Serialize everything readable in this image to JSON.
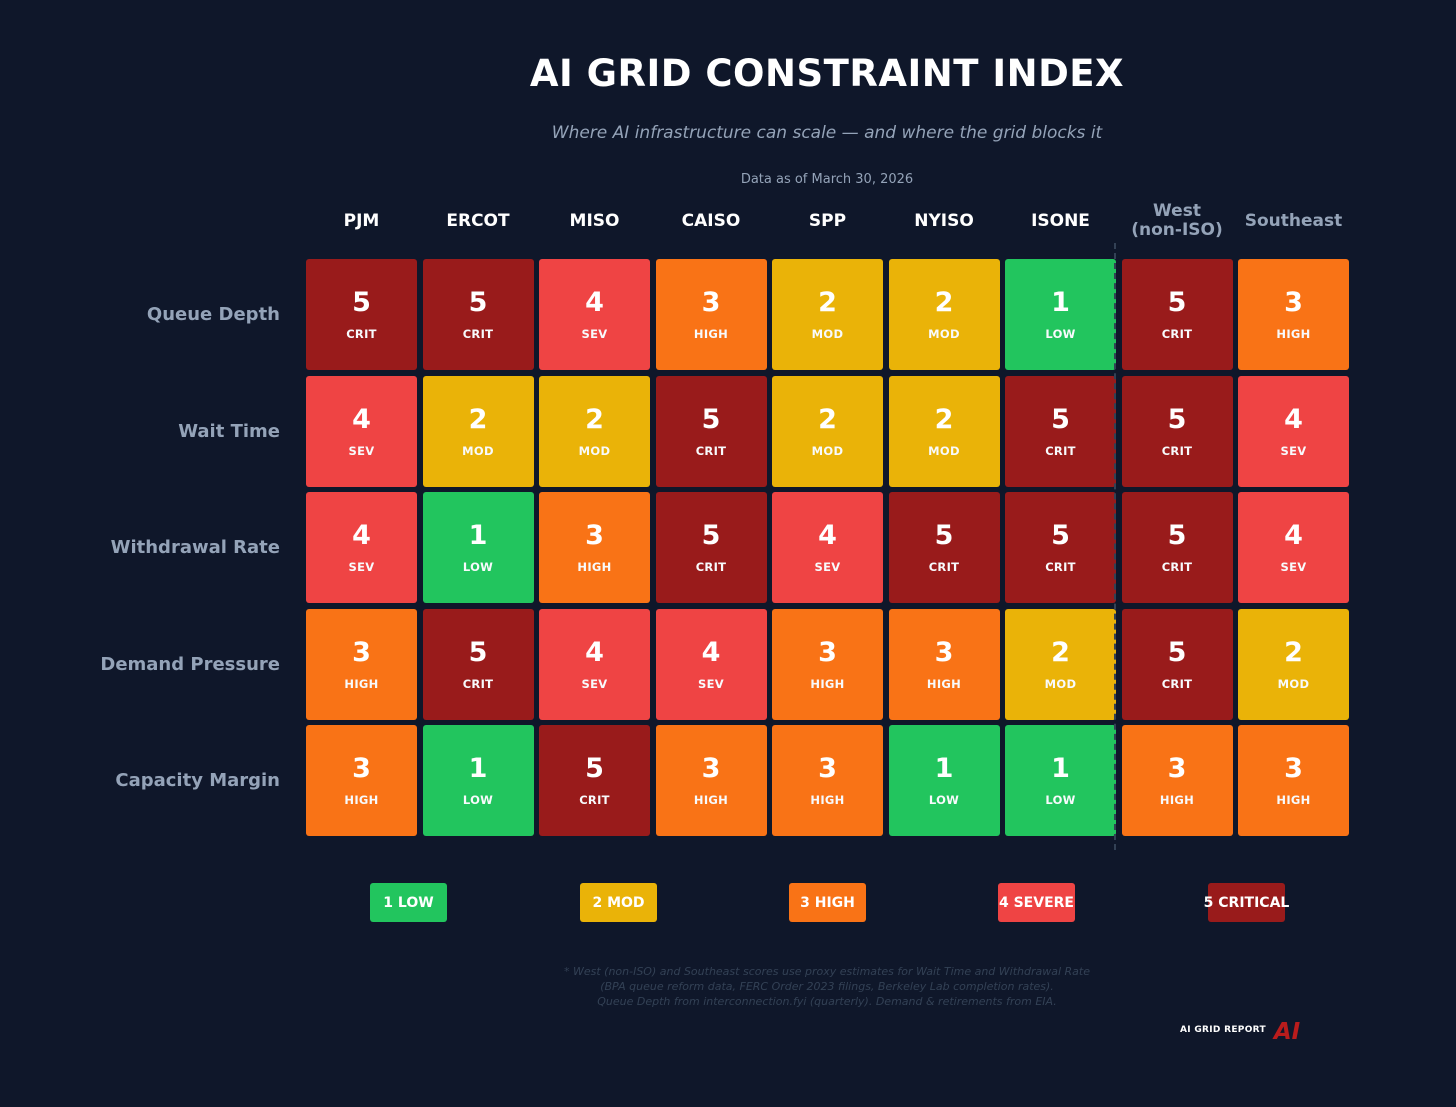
{
  "chart_data": {
    "type": "heatmap",
    "title": "AI GRID CONSTRAINT INDEX",
    "subtitle": "Where AI infrastructure can scale — and where the grid blocks it",
    "as_of": "Data as of March 30, 2026",
    "columns": [
      {
        "name": "PJM",
        "muted": false
      },
      {
        "name": "ERCOT",
        "muted": false
      },
      {
        "name": "MISO",
        "muted": false
      },
      {
        "name": "CAISO",
        "muted": false
      },
      {
        "name": "SPP",
        "muted": false
      },
      {
        "name": "NYISO",
        "muted": false
      },
      {
        "name": "ISONE",
        "muted": false
      },
      {
        "name": "West\n(non-ISO)",
        "muted": true
      },
      {
        "name": "Southeast",
        "muted": true
      }
    ],
    "rows": [
      "Queue Depth",
      "Wait Time",
      "Withdrawal Rate",
      "Demand Pressure",
      "Capacity Margin"
    ],
    "values": [
      [
        5,
        5,
        4,
        3,
        2,
        2,
        1,
        5,
        3
      ],
      [
        4,
        2,
        2,
        5,
        2,
        2,
        5,
        5,
        4
      ],
      [
        4,
        1,
        3,
        5,
        4,
        5,
        5,
        5,
        4
      ],
      [
        3,
        5,
        4,
        4,
        3,
        3,
        2,
        5,
        2
      ],
      [
        3,
        1,
        5,
        3,
        3,
        1,
        1,
        3,
        3
      ]
    ],
    "levels": {
      "1": {
        "abbr": "LOW",
        "legend": "1 LOW",
        "color": "#22c55e"
      },
      "2": {
        "abbr": "MOD",
        "legend": "2 MOD",
        "color": "#eab308"
      },
      "3": {
        "abbr": "HIGH",
        "legend": "3 HIGH",
        "color": "#f97316"
      },
      "4": {
        "abbr": "SEV",
        "legend": "4 SEVERE",
        "color": "#ef4444"
      },
      "5": {
        "abbr": "CRIT",
        "legend": "5 CRITICAL",
        "color": "#991b1b"
      }
    }
  },
  "colors": {
    "background": "#0f172a",
    "header_text": "#ffffff",
    "muted_text": "#94a3b8",
    "footnote_text": "#334155"
  },
  "footnote": [
    "* West (non-ISO) and Southeast scores use proxy estimates for Wait Time and Withdrawal Rate",
    "(BPA queue reform data, FERC Order 2023 filings, Berkeley Lab completion rates).",
    "Queue Depth from interconnection.fyi (quarterly). Demand & retirements from EIA."
  ],
  "brand": {
    "name": "AI GRID REPORT",
    "mark": "AI",
    "mark_color": "#b91c1c"
  }
}
